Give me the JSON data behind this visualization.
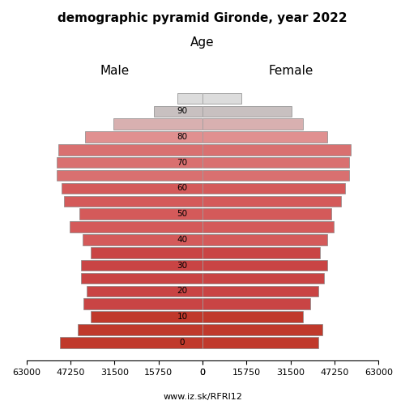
{
  "title": "demographic pyramid Gironde, year 2022",
  "male_label": "Male",
  "female_label": "Female",
  "age_label": "Age",
  "footnote": "www.iz.sk/RFRI12",
  "age_ticks": [
    0,
    10,
    20,
    30,
    40,
    50,
    60,
    70,
    80,
    90
  ],
  "male_values": [
    51000,
    44500,
    40000,
    42500,
    41500,
    43500,
    43500,
    40000,
    43000,
    47500,
    44000,
    49500,
    50500,
    52000,
    52000,
    51500,
    42000,
    32000,
    17500,
    9000
  ],
  "female_values": [
    41500,
    43000,
    36000,
    38500,
    41500,
    43500,
    44500,
    42000,
    44500,
    47000,
    46000,
    49500,
    51000,
    52500,
    52500,
    53000,
    44500,
    36000,
    32000,
    14000
  ],
  "xlim": 63000,
  "xticks": [
    0,
    15750,
    31500,
    47250,
    63000
  ],
  "colors_male": [
    "#c0392b",
    "#c0392b",
    "#c0392b",
    "#c94444",
    "#c94444",
    "#c94444",
    "#c94444",
    "#c94444",
    "#d45a5a",
    "#d45a5a",
    "#d45a5a",
    "#d45a5a",
    "#d45a5a",
    "#d97070",
    "#d97070",
    "#d97070",
    "#e09090",
    "#d8b0b0",
    "#c8c0c0",
    "#dcdcdc"
  ],
  "colors_female": [
    "#c0392b",
    "#c0392b",
    "#c0392b",
    "#c94444",
    "#c94444",
    "#c94444",
    "#c94444",
    "#c94444",
    "#d45a5a",
    "#d45a5a",
    "#d45a5a",
    "#d45a5a",
    "#d45a5a",
    "#d97070",
    "#d97070",
    "#d97070",
    "#e09090",
    "#d8b0b0",
    "#c8c0c0",
    "#dcdcdc"
  ],
  "bar_edgecolor": "#888888",
  "bar_linewidth": 0.5
}
